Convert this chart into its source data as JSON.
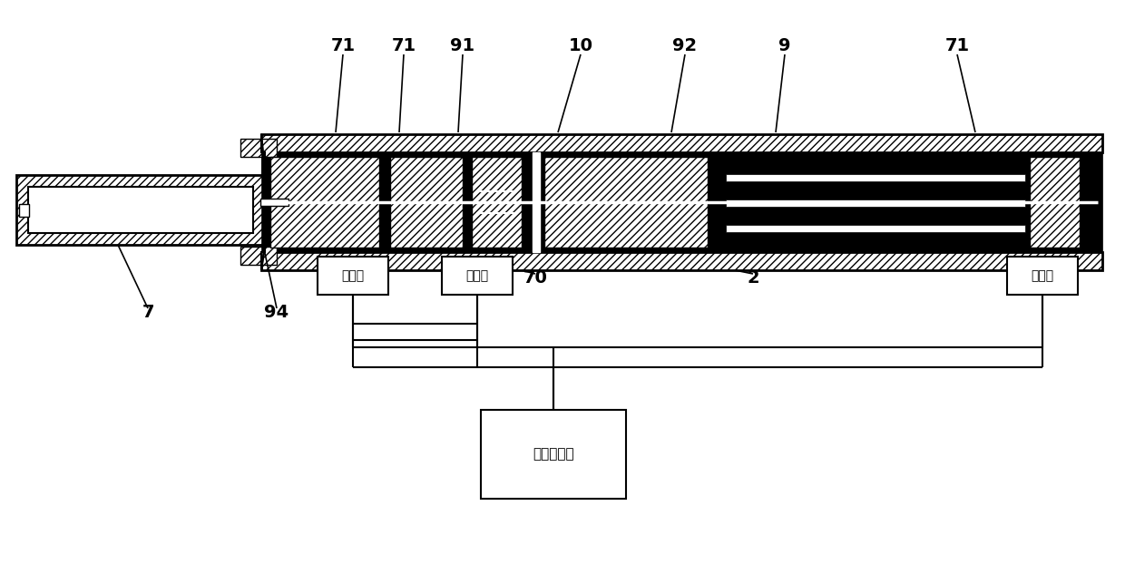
{
  "bg_color": "#ffffff",
  "labels": {
    "71_left": "71",
    "71_mid": "71",
    "91": "91",
    "10": "10",
    "92": "92",
    "9": "9",
    "71_right": "71",
    "7": "7",
    "94": "94",
    "70": "70",
    "2": "2",
    "relay1": "继电器",
    "relay2": "继电器",
    "relay3": "继电器",
    "temp_ctrl": "温度控制器"
  }
}
